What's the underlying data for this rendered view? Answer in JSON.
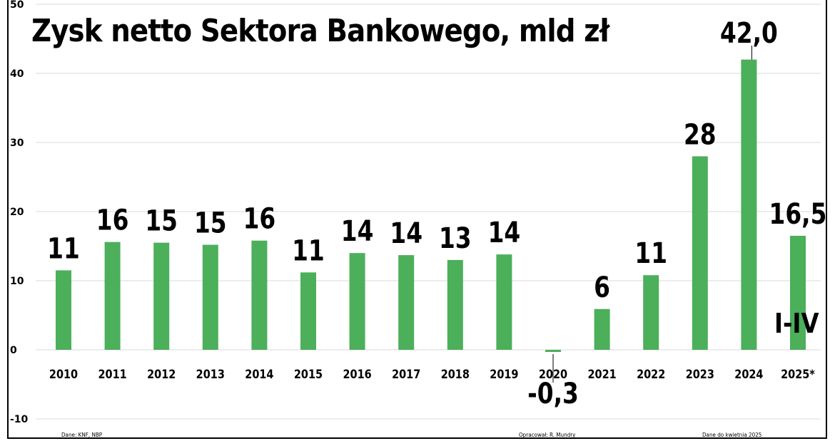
{
  "chart_data": {
    "type": "bar",
    "title": "Zysk netto Sektora Bankowego, mld zł",
    "categories": [
      "2010",
      "2011",
      "2012",
      "2013",
      "2014",
      "2015",
      "2016",
      "2017",
      "2018",
      "2019",
      "2020",
      "2021",
      "2022",
      "2023",
      "2024",
      "2025*"
    ],
    "values": [
      11.5,
      15.6,
      15.5,
      15.2,
      15.8,
      11.2,
      14.0,
      13.7,
      13.0,
      13.8,
      -0.3,
      5.9,
      10.8,
      28.0,
      42.0,
      16.5
    ],
    "data_labels": [
      "11",
      "16",
      "15",
      "15",
      "16",
      "11",
      "14",
      "14",
      "13",
      "14",
      "-0,3",
      "6",
      "11",
      "28",
      "42,0",
      "16,5"
    ],
    "ylim": [
      -10,
      50
    ],
    "yticks": [
      -10,
      0,
      10,
      20,
      30,
      40,
      50
    ],
    "grid": true,
    "bar_color": "#4caf5a",
    "annotation": "I-IV"
  },
  "footer": {
    "source": "Dane: KNF, NBP",
    "author": "Opracował: R. Mundry",
    "date_note": "Dane do kwietnia 2025"
  }
}
